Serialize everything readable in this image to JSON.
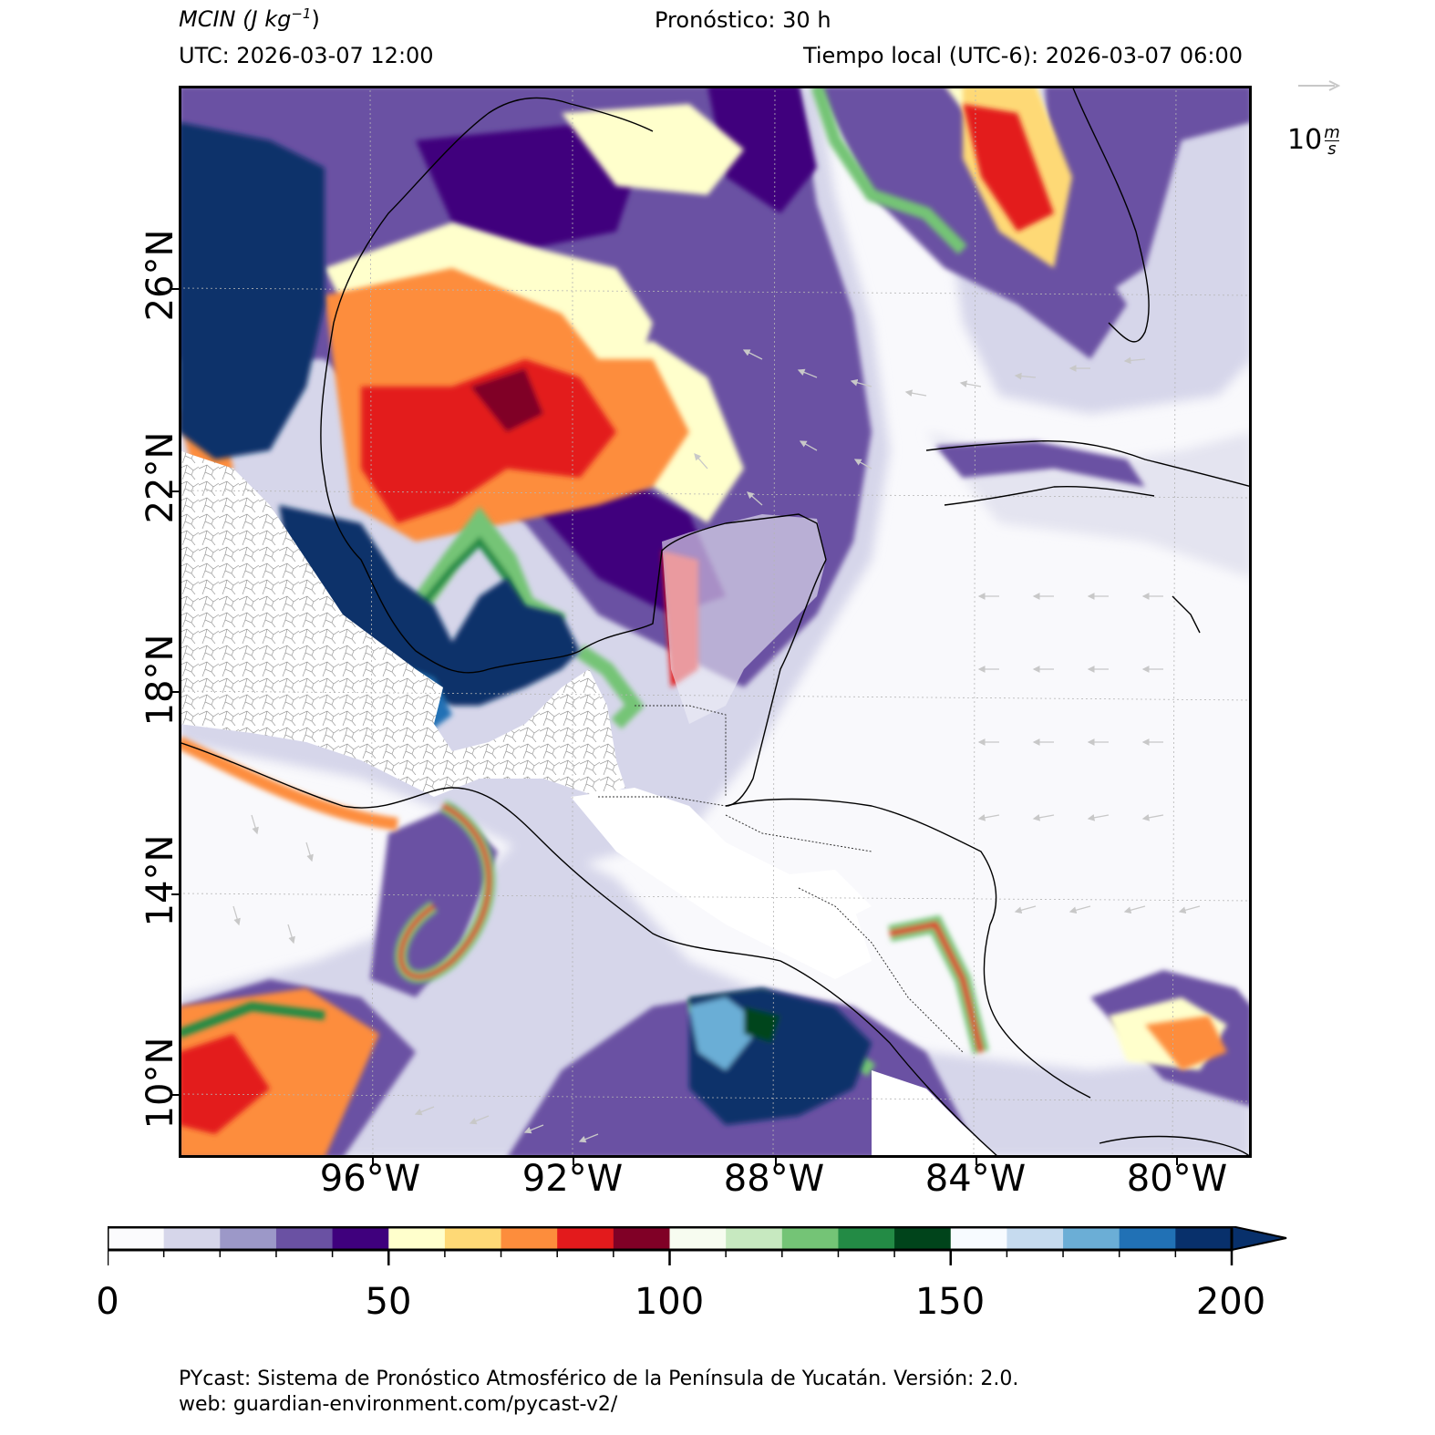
{
  "header": {
    "variable": "MCIN",
    "units": "(J kg",
    "units_exp": "−1",
    "units_close": ")",
    "forecast": "Pronóstico: 30 h",
    "utc": "UTC:  2026-03-07 12:00",
    "local": "Tiempo local (UTC-6): 2026-03-07 06:00"
  },
  "map": {
    "lat_labels": [
      "26°N",
      "22°N",
      "18°N",
      "14°N",
      "10°N"
    ],
    "lon_labels": [
      "96°W",
      "92°W",
      "88°W",
      "84°W",
      "80°W"
    ],
    "region": "Golfo de México, Península de Yucatán y Centroamérica"
  },
  "wind_key": {
    "speed": "10",
    "unit_num": "m",
    "unit_den": "s",
    "arrow_color": "#c8c8c8"
  },
  "colorbar": {
    "min": 0,
    "max": 200,
    "step": 10,
    "extend": "max",
    "tick_labels": [
      "0",
      "50",
      "100",
      "150",
      "200"
    ],
    "colors": [
      "#fbfbfd",
      "#d6d6ea",
      "#9c98c8",
      "#6a51a3",
      "#3f007d",
      "#ffffcc",
      "#fed976",
      "#fd8d3c",
      "#e31a1c",
      "#800026",
      "#f7fcf0",
      "#c7e9c0",
      "#74c476",
      "#238b45",
      "#00441b",
      "#f7fbff",
      "#c6dbef",
      "#6baed6",
      "#2171b5",
      "#08306b"
    ]
  },
  "footer": {
    "line1": "PYcast: Sistema de Pronóstico Atmosférico de la Península de Yucatán. Versión: 2.0.",
    "line2": "web: guardian-environment.com/pycast-v2/"
  }
}
